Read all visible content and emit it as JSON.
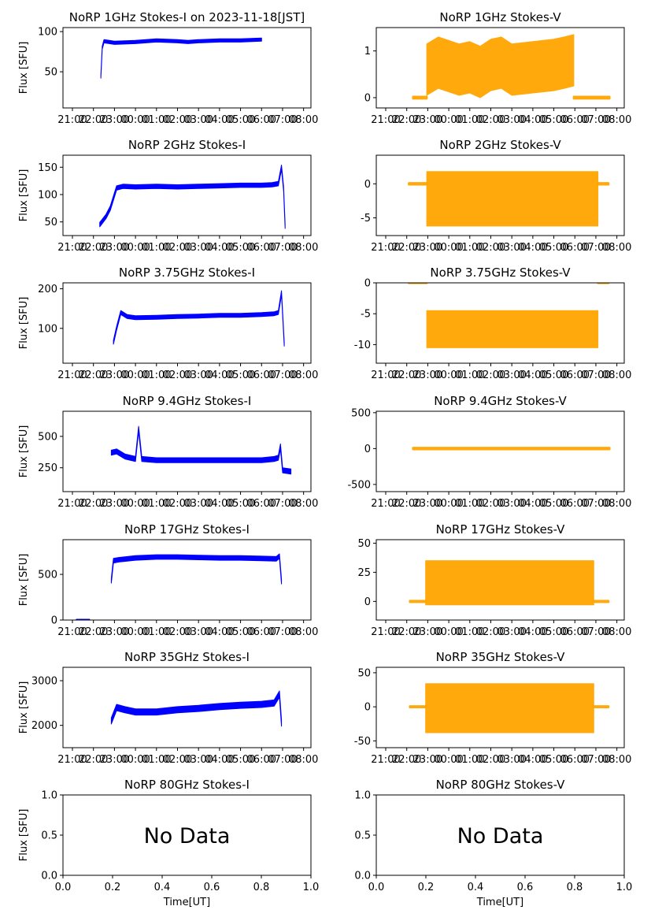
{
  "figure": {
    "x_label": "Time[UT]",
    "time_ticks": [
      "21:00",
      "22:00",
      "23:00",
      "00:00",
      "01:00",
      "02:00",
      "03:00",
      "04:00",
      "05:00",
      "06:00",
      "07:00",
      "08:00"
    ]
  },
  "colors": {
    "stokes_i": "#0000ff",
    "stokes_v": "#ffa500",
    "axis": "#000000"
  },
  "chart_data": [
    {
      "type": "scatter",
      "title": "NoRP 1GHz Stokes-I on 2023-11-18[JST]",
      "ylabel": "Flux [SFU]",
      "ylim": [
        5,
        105
      ],
      "yticks": [
        50,
        100
      ],
      "xaxis": "time",
      "stokes": "I",
      "series": [
        {
          "points": [
            [
              22.35,
              44
            ],
            [
              22.42,
              80
            ],
            [
              22.5,
              88
            ],
            [
              23.0,
              86
            ],
            [
              0.0,
              87
            ],
            [
              1.0,
              89
            ],
            [
              2.0,
              88
            ],
            [
              2.5,
              87
            ],
            [
              3.0,
              88
            ],
            [
              4.0,
              89
            ],
            [
              5.0,
              89
            ],
            [
              6.0,
              90
            ]
          ],
          "band": 2
        }
      ]
    },
    {
      "type": "scatter",
      "title": "NoRP 1GHz Stokes-V",
      "ylabel": "",
      "ylim": [
        -0.22,
        1.5
      ],
      "yticks": [
        0,
        1
      ],
      "xaxis": "time",
      "stokes": "V",
      "series": [
        {
          "points": [
            [
              22.3,
              0
            ],
            [
              22.95,
              0
            ]
          ],
          "band": 0.02
        },
        {
          "points": [
            [
              22.95,
              0.6
            ],
            [
              23.5,
              0.75
            ],
            [
              0.5,
              0.6
            ],
            [
              1.0,
              0.65
            ],
            [
              1.5,
              0.55
            ],
            [
              2.0,
              0.7
            ],
            [
              2.5,
              0.75
            ],
            [
              3.0,
              0.6
            ],
            [
              4.0,
              0.65
            ],
            [
              5.0,
              0.7
            ],
            [
              5.5,
              0.75
            ],
            [
              5.95,
              0.8
            ]
          ],
          "band": 0.55
        },
        {
          "points": [
            [
              5.95,
              0
            ],
            [
              7.65,
              0
            ]
          ],
          "band": 0.02
        }
      ]
    },
    {
      "type": "scatter",
      "title": "NoRP 2GHz Stokes-I",
      "ylabel": "Flux [SFU]",
      "ylim": [
        25,
        172
      ],
      "yticks": [
        50,
        100,
        150
      ],
      "xaxis": "time",
      "stokes": "I",
      "series": [
        {
          "points": [
            [
              22.3,
              45
            ],
            [
              22.6,
              60
            ],
            [
              22.8,
              75
            ],
            [
              23.1,
              112
            ],
            [
              23.4,
              115
            ],
            [
              0.0,
              114
            ],
            [
              1.0,
              115
            ],
            [
              2.0,
              114
            ],
            [
              3.0,
              115
            ],
            [
              4.0,
              116
            ],
            [
              5.0,
              117
            ],
            [
              6.0,
              117
            ],
            [
              6.5,
              118
            ],
            [
              6.8,
              120
            ],
            [
              6.95,
              150
            ],
            [
              7.05,
              110
            ],
            [
              7.12,
              42
            ]
          ],
          "band": 4
        }
      ]
    },
    {
      "type": "scatter",
      "title": "NoRP 2GHz Stokes-V",
      "ylabel": "",
      "ylim": [
        -7.6,
        4.2
      ],
      "yticks": [
        -5,
        0
      ],
      "xaxis": "time",
      "stokes": "V",
      "series": [
        {
          "points": [
            [
              22.1,
              0
            ],
            [
              22.95,
              0
            ]
          ],
          "band": 0.1
        },
        {
          "points": [
            [
              22.95,
              -2.2
            ],
            [
              7.1,
              -2.2
            ]
          ],
          "band": 4.0
        },
        {
          "points": [
            [
              7.1,
              0
            ],
            [
              7.6,
              0
            ]
          ],
          "band": 0.1
        }
      ]
    },
    {
      "type": "scatter",
      "title": "NoRP 3.75GHz Stokes-I",
      "ylabel": "Flux [SFU]",
      "ylim": [
        12,
        215
      ],
      "yticks": [
        100,
        200
      ],
      "xaxis": "time",
      "stokes": "I",
      "series": [
        {
          "points": [
            [
              22.95,
              65
            ],
            [
              23.1,
              100
            ],
            [
              23.3,
              140
            ],
            [
              23.6,
              130
            ],
            [
              0.0,
              127
            ],
            [
              1.0,
              128
            ],
            [
              2.0,
              130
            ],
            [
              3.0,
              131
            ],
            [
              4.0,
              133
            ],
            [
              5.0,
              133
            ],
            [
              6.0,
              135
            ],
            [
              6.6,
              137
            ],
            [
              6.8,
              140
            ],
            [
              6.95,
              190
            ],
            [
              7.08,
              60
            ]
          ],
          "band": 5
        }
      ]
    },
    {
      "type": "scatter",
      "title": "NoRP 3.75GHz Stokes-V",
      "ylabel": "",
      "ylim": [
        -13,
        0
      ],
      "yticks": [
        -10,
        -5,
        0
      ],
      "xaxis": "time",
      "stokes": "V",
      "series": [
        {
          "points": [
            [
              22.1,
              0
            ],
            [
              22.95,
              0
            ]
          ],
          "band": 0.05
        },
        {
          "points": [
            [
              22.95,
              -7.5
            ],
            [
              7.1,
              -7.5
            ]
          ],
          "band": 3.0
        },
        {
          "points": [
            [
              7.1,
              0
            ],
            [
              7.6,
              0
            ]
          ],
          "band": 0.05
        }
      ]
    },
    {
      "type": "scatter",
      "title": "NoRP 9.4GHz Stokes-I",
      "ylabel": "Flux [SFU]",
      "ylim": [
        60,
        700
      ],
      "yticks": [
        250,
        500
      ],
      "xaxis": "time",
      "stokes": "I",
      "series": [
        {
          "points": [
            [
              22.85,
              370
            ],
            [
              23.1,
              380
            ],
            [
              23.5,
              340
            ],
            [
              0.0,
              320
            ],
            [
              0.15,
              560
            ],
            [
              0.3,
              320
            ],
            [
              1.0,
              310
            ],
            [
              2.0,
              310
            ],
            [
              3.0,
              310
            ],
            [
              4.0,
              310
            ],
            [
              5.0,
              310
            ],
            [
              6.0,
              310
            ],
            [
              6.6,
              320
            ],
            [
              6.8,
              330
            ],
            [
              6.9,
              420
            ],
            [
              7.0,
              230
            ],
            [
              7.4,
              220
            ]
          ],
          "band": 20
        }
      ]
    },
    {
      "type": "scatter",
      "title": "NoRP 9.4GHz Stokes-V",
      "ylabel": "",
      "ylim": [
        -600,
        520
      ],
      "yticks": [
        -500,
        0,
        500
      ],
      "xaxis": "time",
      "stokes": "V",
      "series": [
        {
          "points": [
            [
              22.3,
              0
            ],
            [
              22.85,
              0
            ],
            [
              23.0,
              0
            ],
            [
              23.9,
              0
            ],
            [
              0.1,
              0
            ],
            [
              0.2,
              0
            ],
            [
              0.4,
              0
            ],
            [
              1.0,
              0
            ],
            [
              2.0,
              0
            ],
            [
              2.5,
              0
            ],
            [
              3.0,
              0
            ],
            [
              4.0,
              0
            ],
            [
              5.0,
              0
            ],
            [
              6.0,
              0
            ],
            [
              7.0,
              0
            ],
            [
              7.65,
              0
            ]
          ],
          "band": 10
        }
      ]
    },
    {
      "type": "scatter",
      "title": "NoRP 17GHz Stokes-I",
      "ylabel": "Flux [SFU]",
      "ylim": [
        0,
        880
      ],
      "yticks": [
        0,
        500
      ],
      "xaxis": "time",
      "stokes": "I",
      "series": [
        {
          "points": [
            [
              22.85,
              430
            ],
            [
              22.95,
              650
            ],
            [
              23.2,
              660
            ],
            [
              0.0,
              680
            ],
            [
              1.0,
              690
            ],
            [
              2.0,
              690
            ],
            [
              3.0,
              685
            ],
            [
              4.0,
              680
            ],
            [
              5.0,
              680
            ],
            [
              6.0,
              675
            ],
            [
              6.7,
              670
            ],
            [
              6.85,
              700
            ],
            [
              6.95,
              420
            ]
          ],
          "band": 25
        },
        {
          "points": [
            [
              21.2,
              0
            ],
            [
              21.8,
              0
            ]
          ],
          "band": 2
        }
      ]
    },
    {
      "type": "scatter",
      "title": "NoRP 17GHz Stokes-V",
      "ylabel": "",
      "ylim": [
        -16,
        53
      ],
      "yticks": [
        0,
        25,
        50
      ],
      "xaxis": "time",
      "stokes": "V",
      "series": [
        {
          "points": [
            [
              22.15,
              0
            ],
            [
              22.9,
              0
            ]
          ],
          "band": 0.5
        },
        {
          "points": [
            [
              22.9,
              16
            ],
            [
              6.9,
              16
            ]
          ],
          "band": 19
        },
        {
          "points": [
            [
              6.9,
              0
            ],
            [
              7.6,
              0
            ]
          ],
          "band": 0.5
        }
      ]
    },
    {
      "type": "scatter",
      "title": "NoRP 35GHz Stokes-I",
      "ylabel": "Flux [SFU]",
      "ylim": [
        1500,
        3300
      ],
      "yticks": [
        2000,
        3000
      ],
      "xaxis": "time",
      "stokes": "I",
      "series": [
        {
          "points": [
            [
              22.85,
              2100
            ],
            [
              23.1,
              2400
            ],
            [
              23.5,
              2350
            ],
            [
              0.0,
              2300
            ],
            [
              1.0,
              2300
            ],
            [
              2.0,
              2350
            ],
            [
              3.0,
              2380
            ],
            [
              4.0,
              2420
            ],
            [
              5.0,
              2450
            ],
            [
              6.0,
              2470
            ],
            [
              6.6,
              2500
            ],
            [
              6.85,
              2700
            ],
            [
              6.95,
              2050
            ]
          ],
          "band": 70
        }
      ]
    },
    {
      "type": "scatter",
      "title": "NoRP 35GHz Stokes-V",
      "ylabel": "",
      "ylim": [
        -60,
        58
      ],
      "yticks": [
        -50,
        0,
        50
      ],
      "xaxis": "time",
      "stokes": "V",
      "series": [
        {
          "points": [
            [
              22.15,
              0
            ],
            [
              22.9,
              0
            ]
          ],
          "band": 0.8
        },
        {
          "points": [
            [
              22.9,
              -2
            ],
            [
              6.9,
              -2
            ]
          ],
          "band": 36
        },
        {
          "points": [
            [
              6.9,
              0
            ],
            [
              7.6,
              0
            ]
          ],
          "band": 0.8
        }
      ]
    },
    {
      "type": "scatter",
      "title": "NoRP 80GHz Stokes-I",
      "ylabel": "Flux [SFU]",
      "ylim": [
        0,
        1
      ],
      "yticks": [
        "0.0",
        "0.5",
        "1.0"
      ],
      "xaxis": "linear",
      "xticks": [
        "0.0",
        "0.2",
        "0.4",
        "0.6",
        "0.8",
        "1.0"
      ],
      "stokes": "I",
      "series": [],
      "message": "No Data"
    },
    {
      "type": "scatter",
      "title": "NoRP 80GHz Stokes-V",
      "ylabel": "",
      "ylim": [
        0,
        1
      ],
      "yticks": [
        "0.0",
        "0.5",
        "1.0"
      ],
      "xaxis": "linear",
      "xticks": [
        "0.0",
        "0.2",
        "0.4",
        "0.6",
        "0.8",
        "1.0"
      ],
      "stokes": "V",
      "series": [],
      "message": "No Data"
    }
  ]
}
